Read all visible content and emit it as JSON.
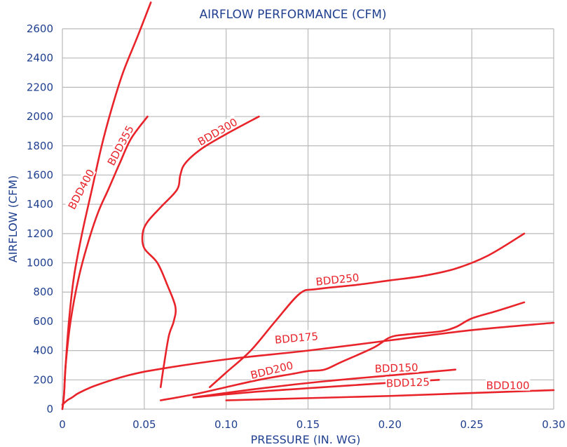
{
  "chart_data": {
    "type": "line",
    "title": "AIRFLOW PERFORMANCE (CFM)",
    "xlabel": "PRESSURE (IN. WG)",
    "ylabel": "AIRFLOW (CFM)",
    "xlim": [
      0,
      0.3
    ],
    "ylim": [
      0,
      2600
    ],
    "x_ticks": [
      "0",
      "0.05",
      "0.10",
      "0.15",
      "0.20",
      "0.25",
      "0.30"
    ],
    "y_ticks": [
      "0",
      "200",
      "400",
      "600",
      "800",
      "1000",
      "1200",
      "1400",
      "1600",
      "1800",
      "2000",
      "2200",
      "2400",
      "2600"
    ],
    "grid": true,
    "colors": {
      "series": "#e8232a",
      "axis_text": "#1f3f8f",
      "grid": "#b9b9b9"
    },
    "series": [
      {
        "name": "BDD400",
        "points": [
          [
            0.0,
            0
          ],
          [
            0.001,
            100
          ],
          [
            0.002,
            300
          ],
          [
            0.004,
            600
          ],
          [
            0.007,
            900
          ],
          [
            0.012,
            1200
          ],
          [
            0.018,
            1500
          ],
          [
            0.024,
            1800
          ],
          [
            0.03,
            2050
          ],
          [
            0.037,
            2300
          ],
          [
            0.046,
            2550
          ],
          [
            0.054,
            2780
          ]
        ]
      },
      {
        "name": "BDD355",
        "points": [
          [
            0.0,
            0
          ],
          [
            0.001,
            100
          ],
          [
            0.002,
            300
          ],
          [
            0.005,
            600
          ],
          [
            0.01,
            900
          ],
          [
            0.016,
            1150
          ],
          [
            0.022,
            1350
          ],
          [
            0.028,
            1500
          ],
          [
            0.035,
            1680
          ],
          [
            0.042,
            1850
          ],
          [
            0.052,
            2000
          ]
        ]
      },
      {
        "name": "BDD300",
        "points": [
          [
            0.06,
            150
          ],
          [
            0.062,
            300
          ],
          [
            0.065,
            500
          ],
          [
            0.068,
            600
          ],
          [
            0.069,
            700
          ],
          [
            0.064,
            850
          ],
          [
            0.058,
            1000
          ],
          [
            0.05,
            1100
          ],
          [
            0.049,
            1200
          ],
          [
            0.052,
            1280
          ],
          [
            0.06,
            1380
          ],
          [
            0.07,
            1500
          ],
          [
            0.072,
            1600
          ],
          [
            0.075,
            1680
          ],
          [
            0.085,
            1780
          ],
          [
            0.1,
            1880
          ],
          [
            0.12,
            2000
          ]
        ]
      },
      {
        "name": "BDD250",
        "points": [
          [
            0.09,
            150
          ],
          [
            0.1,
            250
          ],
          [
            0.115,
            400
          ],
          [
            0.13,
            600
          ],
          [
            0.145,
            790
          ],
          [
            0.155,
            820
          ],
          [
            0.18,
            850
          ],
          [
            0.2,
            880
          ],
          [
            0.22,
            910
          ],
          [
            0.24,
            960
          ],
          [
            0.26,
            1050
          ],
          [
            0.282,
            1200
          ]
        ]
      },
      {
        "name": "BDD175",
        "points": [
          [
            0.0,
            30
          ],
          [
            0.003,
            60
          ],
          [
            0.006,
            80
          ],
          [
            0.01,
            110
          ],
          [
            0.02,
            160
          ],
          [
            0.04,
            230
          ],
          [
            0.06,
            275
          ],
          [
            0.1,
            340
          ],
          [
            0.15,
            400
          ],
          [
            0.2,
            470
          ],
          [
            0.25,
            540
          ],
          [
            0.3,
            590
          ]
        ]
      },
      {
        "name": "BDD200",
        "points": [
          [
            0.06,
            60
          ],
          [
            0.08,
            100
          ],
          [
            0.1,
            150
          ],
          [
            0.12,
            200
          ],
          [
            0.14,
            240
          ],
          [
            0.15,
            260
          ],
          [
            0.16,
            270
          ],
          [
            0.17,
            320
          ],
          [
            0.19,
            420
          ],
          [
            0.2,
            490
          ],
          [
            0.21,
            510
          ],
          [
            0.23,
            530
          ],
          [
            0.24,
            560
          ],
          [
            0.25,
            620
          ],
          [
            0.265,
            670
          ],
          [
            0.282,
            730
          ]
        ]
      },
      {
        "name": "BDD150",
        "points": [
          [
            0.08,
            80
          ],
          [
            0.12,
            140
          ],
          [
            0.16,
            190
          ],
          [
            0.2,
            230
          ],
          [
            0.24,
            270
          ]
        ]
      },
      {
        "name": "BDD125",
        "points": [
          [
            0.08,
            80
          ],
          [
            0.12,
            120
          ],
          [
            0.16,
            150
          ],
          [
            0.2,
            180
          ],
          [
            0.23,
            200
          ]
        ]
      },
      {
        "name": "BDD100",
        "points": [
          [
            0.1,
            60
          ],
          [
            0.15,
            75
          ],
          [
            0.2,
            90
          ],
          [
            0.25,
            110
          ],
          [
            0.3,
            130
          ]
        ]
      }
    ],
    "labels": [
      {
        "text": "BDD400",
        "x": 0.012,
        "y": 1500,
        "angle": -62
      },
      {
        "text": "BDD355",
        "x": 0.036,
        "y": 1800,
        "angle": -62
      },
      {
        "text": "BDD300",
        "x": 0.095,
        "y": 1890,
        "angle": -30
      },
      {
        "text": "BDD250",
        "x": 0.168,
        "y": 880,
        "angle": -6
      },
      {
        "text": "BDD175",
        "x": 0.143,
        "y": 480,
        "angle": -5
      },
      {
        "text": "BDD200",
        "x": 0.128,
        "y": 260,
        "angle": -14
      },
      {
        "text": "BDD150",
        "x": 0.204,
        "y": 275,
        "angle": -2
      },
      {
        "text": "BDD125",
        "x": 0.211,
        "y": 175,
        "angle": -2
      },
      {
        "text": "BDD100",
        "x": 0.272,
        "y": 155,
        "angle": 0
      }
    ]
  }
}
